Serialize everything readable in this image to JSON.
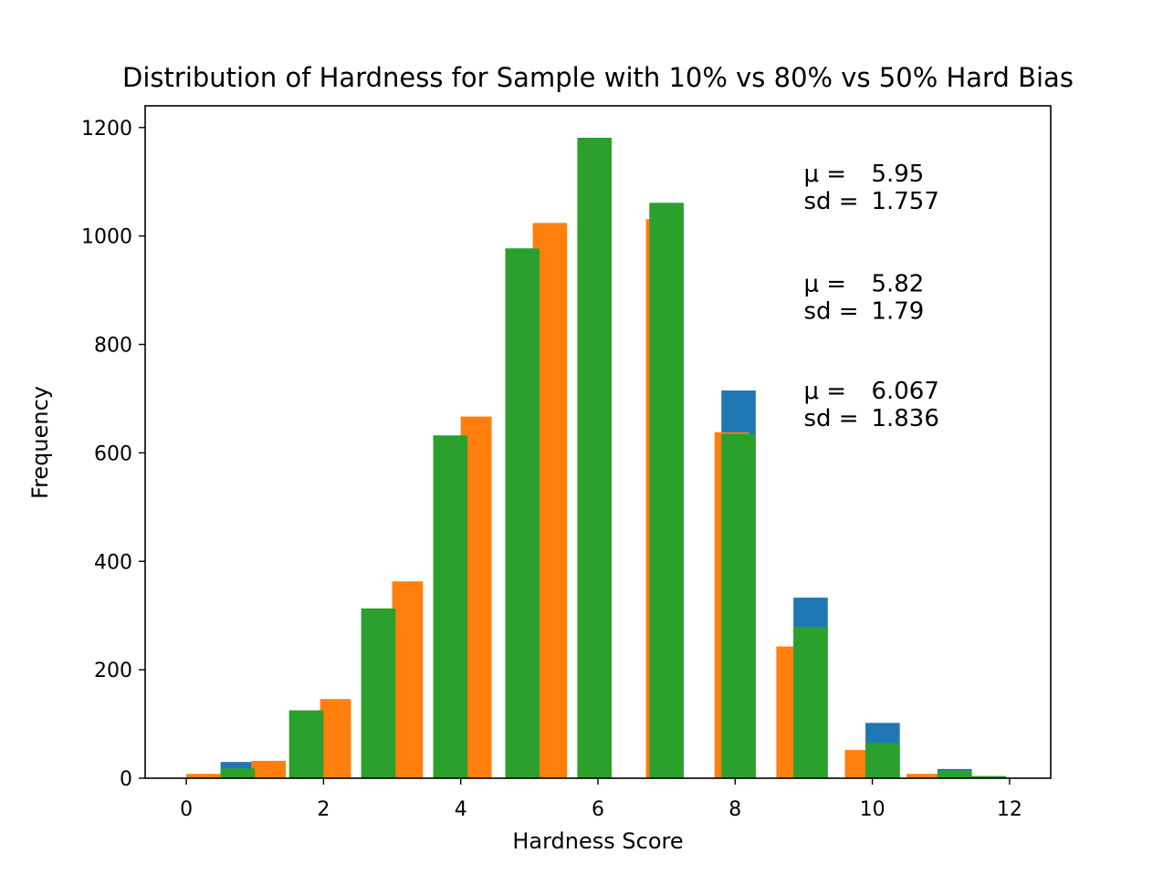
{
  "chart_data": {
    "type": "bar",
    "title": "Distribution of Hardness for Sample with 10% vs 80% vs 50% Hard Bias",
    "xlabel": "Hardness Score",
    "ylabel": "Frequency",
    "xlim": [
      -0.6,
      12.6
    ],
    "ylim": [
      0,
      1240
    ],
    "xticks": [
      0,
      2,
      4,
      6,
      8,
      10,
      12
    ],
    "yticks": [
      0,
      200,
      400,
      600,
      800,
      1000,
      1200
    ],
    "grid": false,
    "legend": "none",
    "series": [
      {
        "color": "#1f77b4",
        "bars": [
          {
            "x0": 0.5,
            "x1": 1.0,
            "value": 30
          },
          {
            "x0": 1.5,
            "x1": 2.0,
            "value": 125
          },
          {
            "x0": 2.55,
            "x1": 3.05,
            "value": 313
          },
          {
            "x0": 3.6,
            "x1": 4.1,
            "value": 632
          },
          {
            "x0": 4.65,
            "x1": 5.15,
            "value": 977
          },
          {
            "x0": 5.7,
            "x1": 6.2,
            "value": 1181
          },
          {
            "x0": 6.75,
            "x1": 7.25,
            "value": 1061
          },
          {
            "x0": 7.8,
            "x1": 8.3,
            "value": 715
          },
          {
            "x0": 8.85,
            "x1": 9.35,
            "value": 333
          },
          {
            "x0": 9.9,
            "x1": 10.4,
            "value": 102
          },
          {
            "x0": 10.95,
            "x1": 11.45,
            "value": 17
          }
        ]
      },
      {
        "color": "#ff7f0e",
        "bars": [
          {
            "x0": 0.0,
            "x1": 0.5,
            "value": 8
          },
          {
            "x0": 0.95,
            "x1": 1.45,
            "value": 32
          },
          {
            "x0": 1.95,
            "x1": 2.4,
            "value": 146
          },
          {
            "x0": 3.0,
            "x1": 3.45,
            "value": 363
          },
          {
            "x0": 4.0,
            "x1": 4.45,
            "value": 667
          },
          {
            "x0": 5.05,
            "x1": 5.55,
            "value": 1024
          },
          {
            "x0": 6.7,
            "x1": 7.2,
            "value": 1031
          },
          {
            "x0": 7.7,
            "x1": 8.2,
            "value": 638
          },
          {
            "x0": 8.6,
            "x1": 9.1,
            "value": 243
          },
          {
            "x0": 9.6,
            "x1": 10.05,
            "value": 52
          },
          {
            "x0": 10.5,
            "x1": 10.95,
            "value": 8
          }
        ]
      },
      {
        "color": "#2ca02c",
        "bars": [
          {
            "x0": 0.5,
            "x1": 1.0,
            "value": 18
          },
          {
            "x0": 1.5,
            "x1": 2.0,
            "value": 125
          },
          {
            "x0": 2.55,
            "x1": 3.05,
            "value": 313
          },
          {
            "x0": 3.6,
            "x1": 4.1,
            "value": 632
          },
          {
            "x0": 4.65,
            "x1": 5.15,
            "value": 977
          },
          {
            "x0": 5.7,
            "x1": 6.2,
            "value": 1181
          },
          {
            "x0": 6.75,
            "x1": 7.25,
            "value": 1061
          },
          {
            "x0": 7.8,
            "x1": 8.3,
            "value": 635
          },
          {
            "x0": 8.85,
            "x1": 9.35,
            "value": 279
          },
          {
            "x0": 9.9,
            "x1": 10.4,
            "value": 65
          },
          {
            "x0": 10.95,
            "x1": 11.45,
            "value": 14
          },
          {
            "x0": 11.45,
            "x1": 11.95,
            "value": 4
          }
        ]
      }
    ],
    "annotations": [
      {
        "mu_label": "μ =",
        "mu_value": "5.95",
        "sd_label": "sd =",
        "sd_value": "1.757",
        "x": 9.0,
        "y": 1100
      },
      {
        "mu_label": "μ =",
        "mu_value": "5.82",
        "sd_label": "sd =",
        "sd_value": "1.79",
        "x": 9.0,
        "y": 898
      },
      {
        "mu_label": "μ =",
        "mu_value": "6.067",
        "sd_label": "sd =",
        "sd_value": "1.836",
        "x": 9.0,
        "y": 700
      }
    ]
  }
}
